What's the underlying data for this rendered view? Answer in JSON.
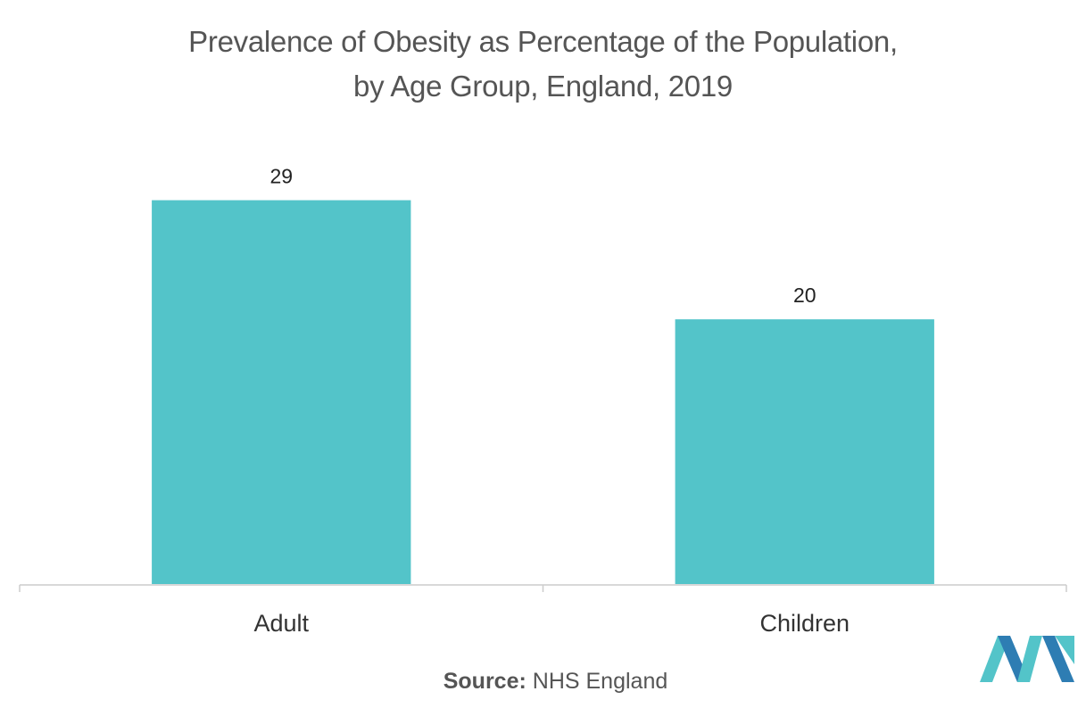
{
  "chart_data": {
    "type": "bar",
    "title_lines": [
      "Prevalence of Obesity as Percentage of the Population,",
      "by Age Group, England, 2019"
    ],
    "categories": [
      "Adult",
      "Children"
    ],
    "values": [
      29,
      20
    ],
    "data_labels": [
      "29",
      "20"
    ],
    "xlabel": "",
    "ylabel": "",
    "ylim": [
      0,
      32
    ],
    "grid": false,
    "legend": "none",
    "bar_color": "#53C4C9"
  },
  "source": {
    "label": "Source:",
    "text": "NHS England"
  },
  "logo": {
    "icon": "mordor-intelligence-logo-icon",
    "colors": [
      "#2E7DB3",
      "#53C4C9"
    ]
  }
}
